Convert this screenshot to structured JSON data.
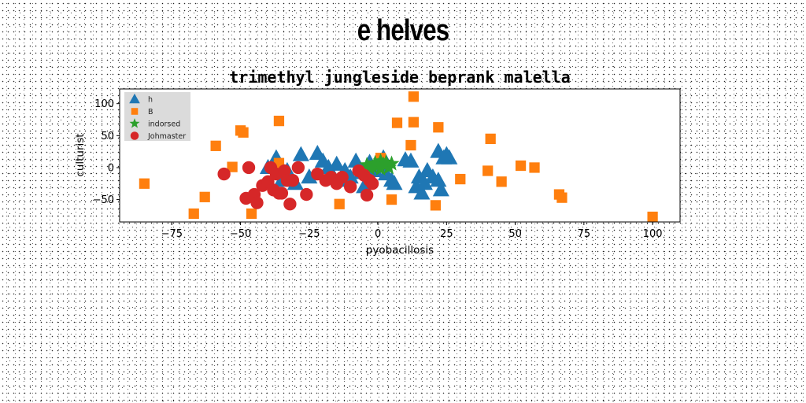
{
  "suptitle": "e helves",
  "chart_data": {
    "type": "scatter",
    "title": "trimethyl jungleside beprank malella",
    "xlabel": "pyobacillosis",
    "ylabel": "culturist",
    "xlim": [
      -94,
      110
    ],
    "ylim": [
      -85,
      123
    ],
    "xticks": [
      -75,
      -50,
      -25,
      0,
      25,
      50,
      75,
      100
    ],
    "yticks": [
      -50,
      0,
      50,
      100
    ],
    "grid": false,
    "legend_position": "upper-left",
    "series": [
      {
        "name": "h",
        "marker": "triangle",
        "color": "#1f77b4",
        "points": [
          [
            -28,
            20
          ],
          [
            -22,
            22
          ],
          [
            -20,
            10
          ],
          [
            -18,
            0
          ],
          [
            -15,
            5
          ],
          [
            -14,
            -20
          ],
          [
            -12,
            -5
          ],
          [
            -10,
            -15
          ],
          [
            -8,
            10
          ],
          [
            -6,
            -8
          ],
          [
            -5,
            -30
          ],
          [
            -3,
            8
          ],
          [
            -1,
            -5
          ],
          [
            2,
            15
          ],
          [
            3,
            -10
          ],
          [
            5,
            -20
          ],
          [
            6,
            -25
          ],
          [
            10,
            12
          ],
          [
            12,
            10
          ],
          [
            14,
            -30
          ],
          [
            15,
            -15
          ],
          [
            16,
            -40
          ],
          [
            17,
            -25
          ],
          [
            18,
            -5
          ],
          [
            20,
            -15
          ],
          [
            22,
            -20
          ],
          [
            23,
            -35
          ],
          [
            22,
            25
          ],
          [
            25,
            20
          ],
          [
            24,
            15
          ],
          [
            26,
            15
          ],
          [
            -37,
            15
          ],
          [
            -33,
            -5
          ],
          [
            -30,
            -25
          ],
          [
            -35,
            -20
          ],
          [
            -40,
            0
          ],
          [
            -25,
            -15
          ]
        ]
      },
      {
        "name": "B",
        "marker": "square",
        "color": "#ff7f0e",
        "points": [
          [
            -85,
            -25
          ],
          [
            -67,
            -72
          ],
          [
            -63,
            -46
          ],
          [
            -59,
            34
          ],
          [
            -53,
            1
          ],
          [
            -50,
            58
          ],
          [
            -49,
            55
          ],
          [
            -46,
            -72
          ],
          [
            -36,
            73
          ],
          [
            -36,
            7
          ],
          [
            -14,
            -57
          ],
          [
            1,
            15
          ],
          [
            5,
            -50
          ],
          [
            7,
            70
          ],
          [
            12,
            35
          ],
          [
            13,
            111
          ],
          [
            13,
            71
          ],
          [
            22,
            63
          ],
          [
            21,
            -59
          ],
          [
            30,
            -18
          ],
          [
            40,
            -5
          ],
          [
            41,
            45
          ],
          [
            45,
            -22
          ],
          [
            52,
            3
          ],
          [
            57,
            0
          ],
          [
            66,
            -42
          ],
          [
            67,
            -47
          ],
          [
            100,
            -77
          ]
        ]
      },
      {
        "name": "indorsed",
        "marker": "star",
        "color": "#2ca02c",
        "points": [
          [
            -4,
            4
          ],
          [
            -2,
            1
          ],
          [
            -1,
            7
          ],
          [
            0,
            3
          ],
          [
            1,
            10
          ],
          [
            2,
            5
          ],
          [
            3,
            8
          ],
          [
            4,
            0
          ],
          [
            1,
            -2
          ],
          [
            -3,
            -1
          ],
          [
            5,
            6
          ]
        ]
      },
      {
        "name": "Johmaster",
        "marker": "circle",
        "color": "#d62728",
        "points": [
          [
            -56,
            -10
          ],
          [
            -48,
            -48
          ],
          [
            -47,
            0
          ],
          [
            -45,
            -42
          ],
          [
            -44,
            -55
          ],
          [
            -42,
            -28
          ],
          [
            -40,
            -22
          ],
          [
            -39,
            0
          ],
          [
            -38,
            -35
          ],
          [
            -37,
            -10
          ],
          [
            -36,
            -40
          ],
          [
            -35,
            -40
          ],
          [
            -34,
            -5
          ],
          [
            -33,
            -20
          ],
          [
            -32,
            -57
          ],
          [
            -31,
            -20
          ],
          [
            -29,
            0
          ],
          [
            -26,
            -42
          ],
          [
            -22,
            -10
          ],
          [
            -19,
            -20
          ],
          [
            -17,
            -15
          ],
          [
            -15,
            -25
          ],
          [
            -13,
            -15
          ],
          [
            -10,
            -30
          ],
          [
            -7,
            -5
          ],
          [
            -5,
            -12
          ],
          [
            -4,
            -43
          ],
          [
            -3,
            -20
          ],
          [
            -2,
            -25
          ]
        ]
      }
    ]
  }
}
